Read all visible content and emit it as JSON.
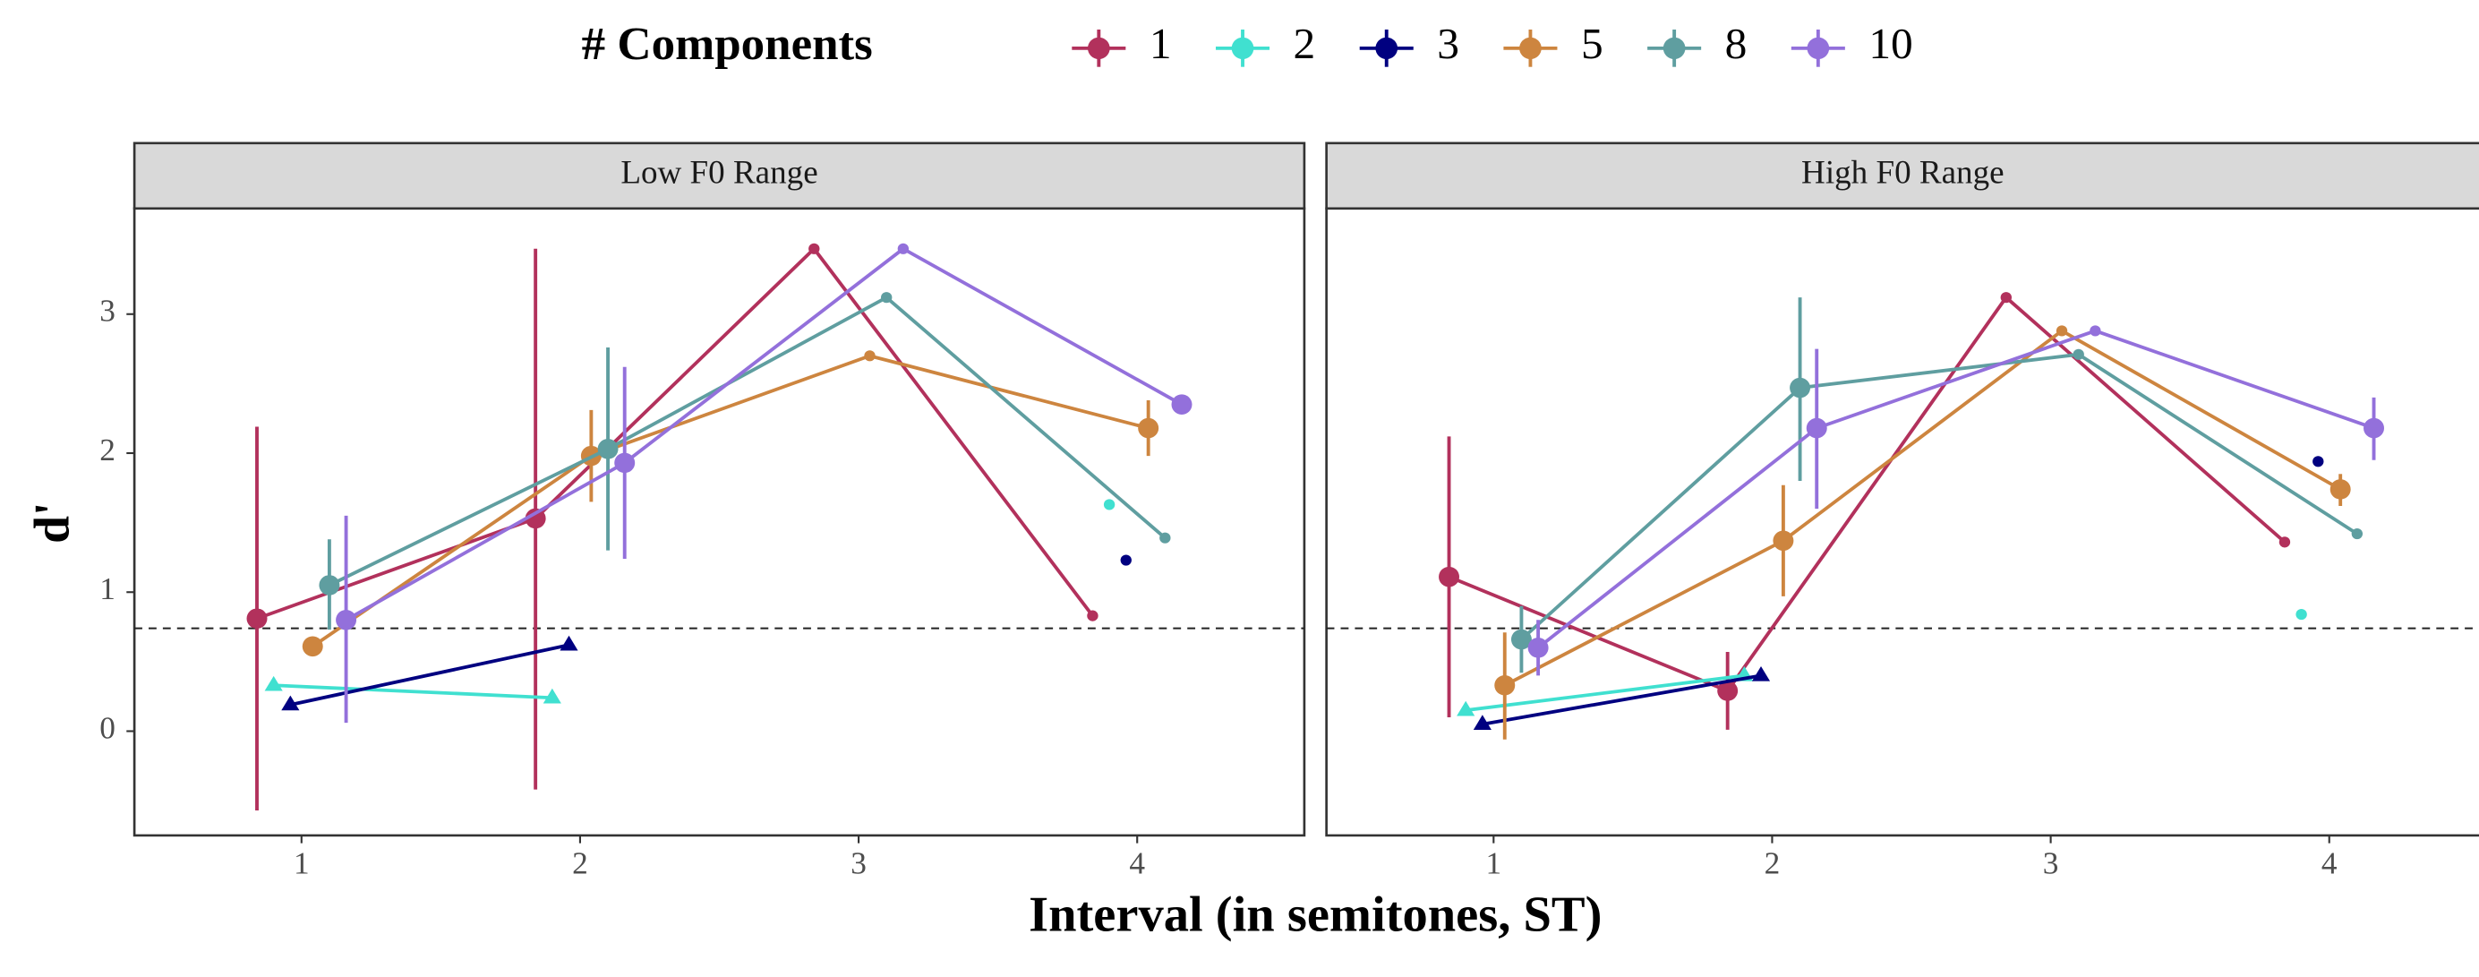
{
  "chart_data": [
    {
      "type": "line",
      "title": "Low F0 Range",
      "xlabel": "Interval (in semitones, ST)",
      "ylabel": "d'",
      "legend_title": "# Components",
      "xlim": [
        0.4,
        4.6
      ],
      "ylim": [
        -0.75,
        3.76
      ],
      "xticks": [
        1,
        2,
        3,
        4
      ],
      "yticks": [
        0,
        1,
        2,
        3
      ],
      "hline": 0.74,
      "series": [
        {
          "name": "1",
          "color": "#b2315c",
          "markers": [
            "circle",
            "circle",
            "circle",
            "circle"
          ],
          "x": [
            0.84,
            1.84,
            2.84,
            3.84
          ],
          "values": [
            0.81,
            1.53,
            3.47,
            0.83
          ],
          "errors": [
            [
              -0.57,
              2.19
            ],
            [
              -0.42,
              3.47
            ],
            null,
            null
          ]
        },
        {
          "name": "2",
          "color": "#40e0d0",
          "markers": [
            "triangle",
            "triangle",
            null,
            "circle"
          ],
          "x": [
            0.9,
            1.9,
            null,
            3.9
          ],
          "values": [
            0.33,
            0.24,
            null,
            1.63
          ],
          "errors": [
            null,
            null,
            null,
            null
          ]
        },
        {
          "name": "3",
          "color": "#000080",
          "markers": [
            "triangle",
            "triangle",
            null,
            "circle"
          ],
          "x": [
            0.96,
            1.96,
            null,
            3.96
          ],
          "values": [
            0.19,
            0.62,
            null,
            1.23
          ],
          "errors": [
            null,
            null,
            null,
            null
          ]
        },
        {
          "name": "5",
          "color": "#cd853f",
          "markers": [
            "circle",
            "circle",
            "circle",
            "circle"
          ],
          "x": [
            1.04,
            2.04,
            3.04,
            4.04
          ],
          "values": [
            0.61,
            1.98,
            2.7,
            2.18
          ],
          "errors": [
            [
              0.55,
              0.67
            ],
            [
              1.65,
              2.31
            ],
            null,
            [
              1.98,
              2.38
            ]
          ]
        },
        {
          "name": "8",
          "color": "#5f9ea0",
          "markers": [
            "circle",
            "circle",
            "circle",
            "circle"
          ],
          "x": [
            1.1,
            2.1,
            3.1,
            4.1
          ],
          "values": [
            1.05,
            2.03,
            3.12,
            1.39
          ],
          "errors": [
            [
              0.73,
              1.38
            ],
            [
              1.3,
              2.76
            ],
            null,
            null
          ]
        },
        {
          "name": "10",
          "color": "#9370db",
          "markers": [
            "circle",
            "circle",
            "circle",
            "circle"
          ],
          "x": [
            1.16,
            2.16,
            3.16,
            4.16
          ],
          "values": [
            0.8,
            1.93,
            3.47,
            2.35
          ],
          "errors": [
            [
              0.06,
              1.55
            ],
            [
              1.24,
              2.62
            ],
            null,
            [
              2.3,
              2.4
            ]
          ]
        }
      ]
    },
    {
      "type": "line",
      "title": "High F0 Range",
      "xlim": [
        0.4,
        4.6
      ],
      "ylim": [
        -0.75,
        3.76
      ],
      "xticks": [
        1,
        2,
        3,
        4
      ],
      "hline": 0.74,
      "series": [
        {
          "name": "1",
          "color": "#b2315c",
          "markers": [
            "circle",
            "circle",
            "circle",
            "circle"
          ],
          "x": [
            0.84,
            1.84,
            2.84,
            3.84
          ],
          "values": [
            1.11,
            0.29,
            3.12,
            1.36
          ],
          "errors": [
            [
              0.1,
              2.12
            ],
            [
              0.01,
              0.57
            ],
            null,
            null
          ]
        },
        {
          "name": "2",
          "color": "#40e0d0",
          "markers": [
            "triangle",
            "triangle",
            null,
            "circle"
          ],
          "x": [
            0.9,
            1.9,
            null,
            3.9
          ],
          "values": [
            0.15,
            0.4,
            null,
            0.84
          ],
          "errors": [
            null,
            null,
            null,
            null
          ]
        },
        {
          "name": "3",
          "color": "#000080",
          "markers": [
            "triangle",
            "triangle",
            null,
            "circle"
          ],
          "x": [
            0.96,
            1.96,
            null,
            3.96
          ],
          "values": [
            0.05,
            0.4,
            null,
            1.94
          ],
          "errors": [
            null,
            null,
            null,
            null
          ]
        },
        {
          "name": "5",
          "color": "#cd853f",
          "markers": [
            "circle",
            "circle",
            "circle",
            "circle"
          ],
          "x": [
            1.04,
            2.04,
            3.04,
            4.04
          ],
          "values": [
            0.33,
            1.37,
            2.88,
            1.74
          ],
          "errors": [
            [
              -0.06,
              0.71
            ],
            [
              0.97,
              1.77
            ],
            null,
            [
              1.62,
              1.85
            ]
          ]
        },
        {
          "name": "8",
          "color": "#5f9ea0",
          "markers": [
            "circle",
            "circle",
            "circle",
            "circle"
          ],
          "x": [
            1.1,
            2.1,
            3.1,
            4.1
          ],
          "values": [
            0.66,
            2.47,
            2.71,
            1.42
          ],
          "errors": [
            [
              0.42,
              0.9
            ],
            [
              1.8,
              3.12
            ],
            null,
            null
          ]
        },
        {
          "name": "10",
          "color": "#9370db",
          "markers": [
            "circle",
            "circle",
            "circle",
            "circle"
          ],
          "x": [
            1.16,
            2.16,
            3.16,
            4.16
          ],
          "values": [
            0.6,
            2.18,
            2.88,
            2.18
          ],
          "errors": [
            [
              0.4,
              0.8
            ],
            [
              1.6,
              2.75
            ],
            null,
            [
              1.95,
              2.4
            ]
          ]
        }
      ]
    }
  ]
}
